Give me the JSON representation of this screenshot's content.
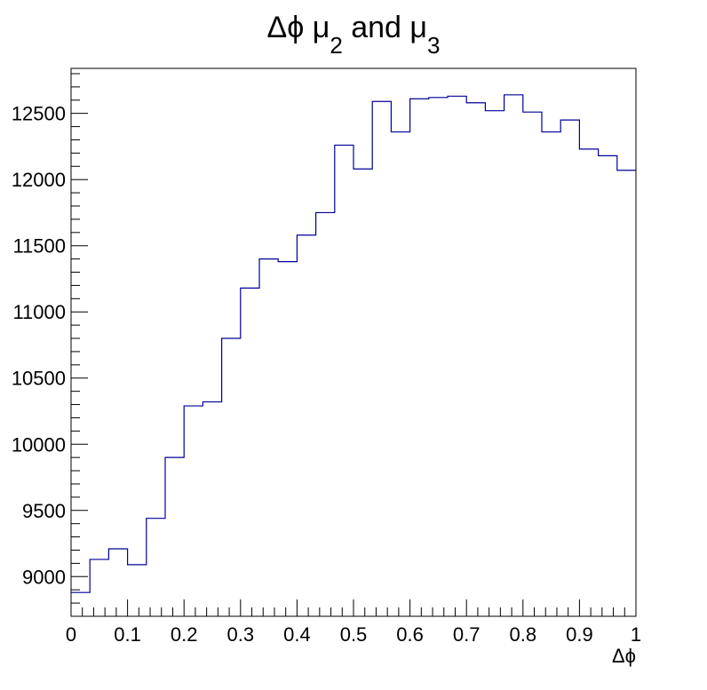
{
  "chart_data": {
    "type": "histogram",
    "title_parts": [
      {
        "text": "Δϕ μ",
        "sub": false
      },
      {
        "text": "2",
        "sub": true
      },
      {
        "text": " and μ",
        "sub": false
      },
      {
        "text": "3",
        "sub": true
      }
    ],
    "xlabel": "Δϕ",
    "ylabel": "",
    "xlim": [
      0,
      1
    ],
    "ylim": [
      8700,
      12840
    ],
    "x_ticks": [
      0,
      0.1,
      0.2,
      0.3,
      0.4,
      0.5,
      0.6,
      0.7,
      0.8,
      0.9,
      1
    ],
    "x_tick_labels": [
      "0",
      "0.1",
      "0.2",
      "0.3",
      "0.4",
      "0.5",
      "0.6",
      "0.7",
      "0.8",
      "0.9",
      "1"
    ],
    "y_ticks": [
      9000,
      9500,
      10000,
      10500,
      11000,
      11500,
      12000,
      12500
    ],
    "y_tick_labels": [
      "9000",
      "9500",
      "10000",
      "10500",
      "11000",
      "11500",
      "12000",
      "12500"
    ],
    "bin_edges_range": [
      0,
      1
    ],
    "bin_count": 30,
    "values": [
      8880,
      9130,
      9210,
      9090,
      9440,
      9900,
      10290,
      10320,
      10800,
      11180,
      11400,
      11380,
      11580,
      11750,
      12260,
      12080,
      12590,
      12360,
      12610,
      12620,
      12630,
      12580,
      12520,
      12640,
      12510,
      12360,
      12450,
      12230,
      12180,
      12070
    ],
    "line_color": "#000099",
    "grid": false,
    "legend": false
  }
}
